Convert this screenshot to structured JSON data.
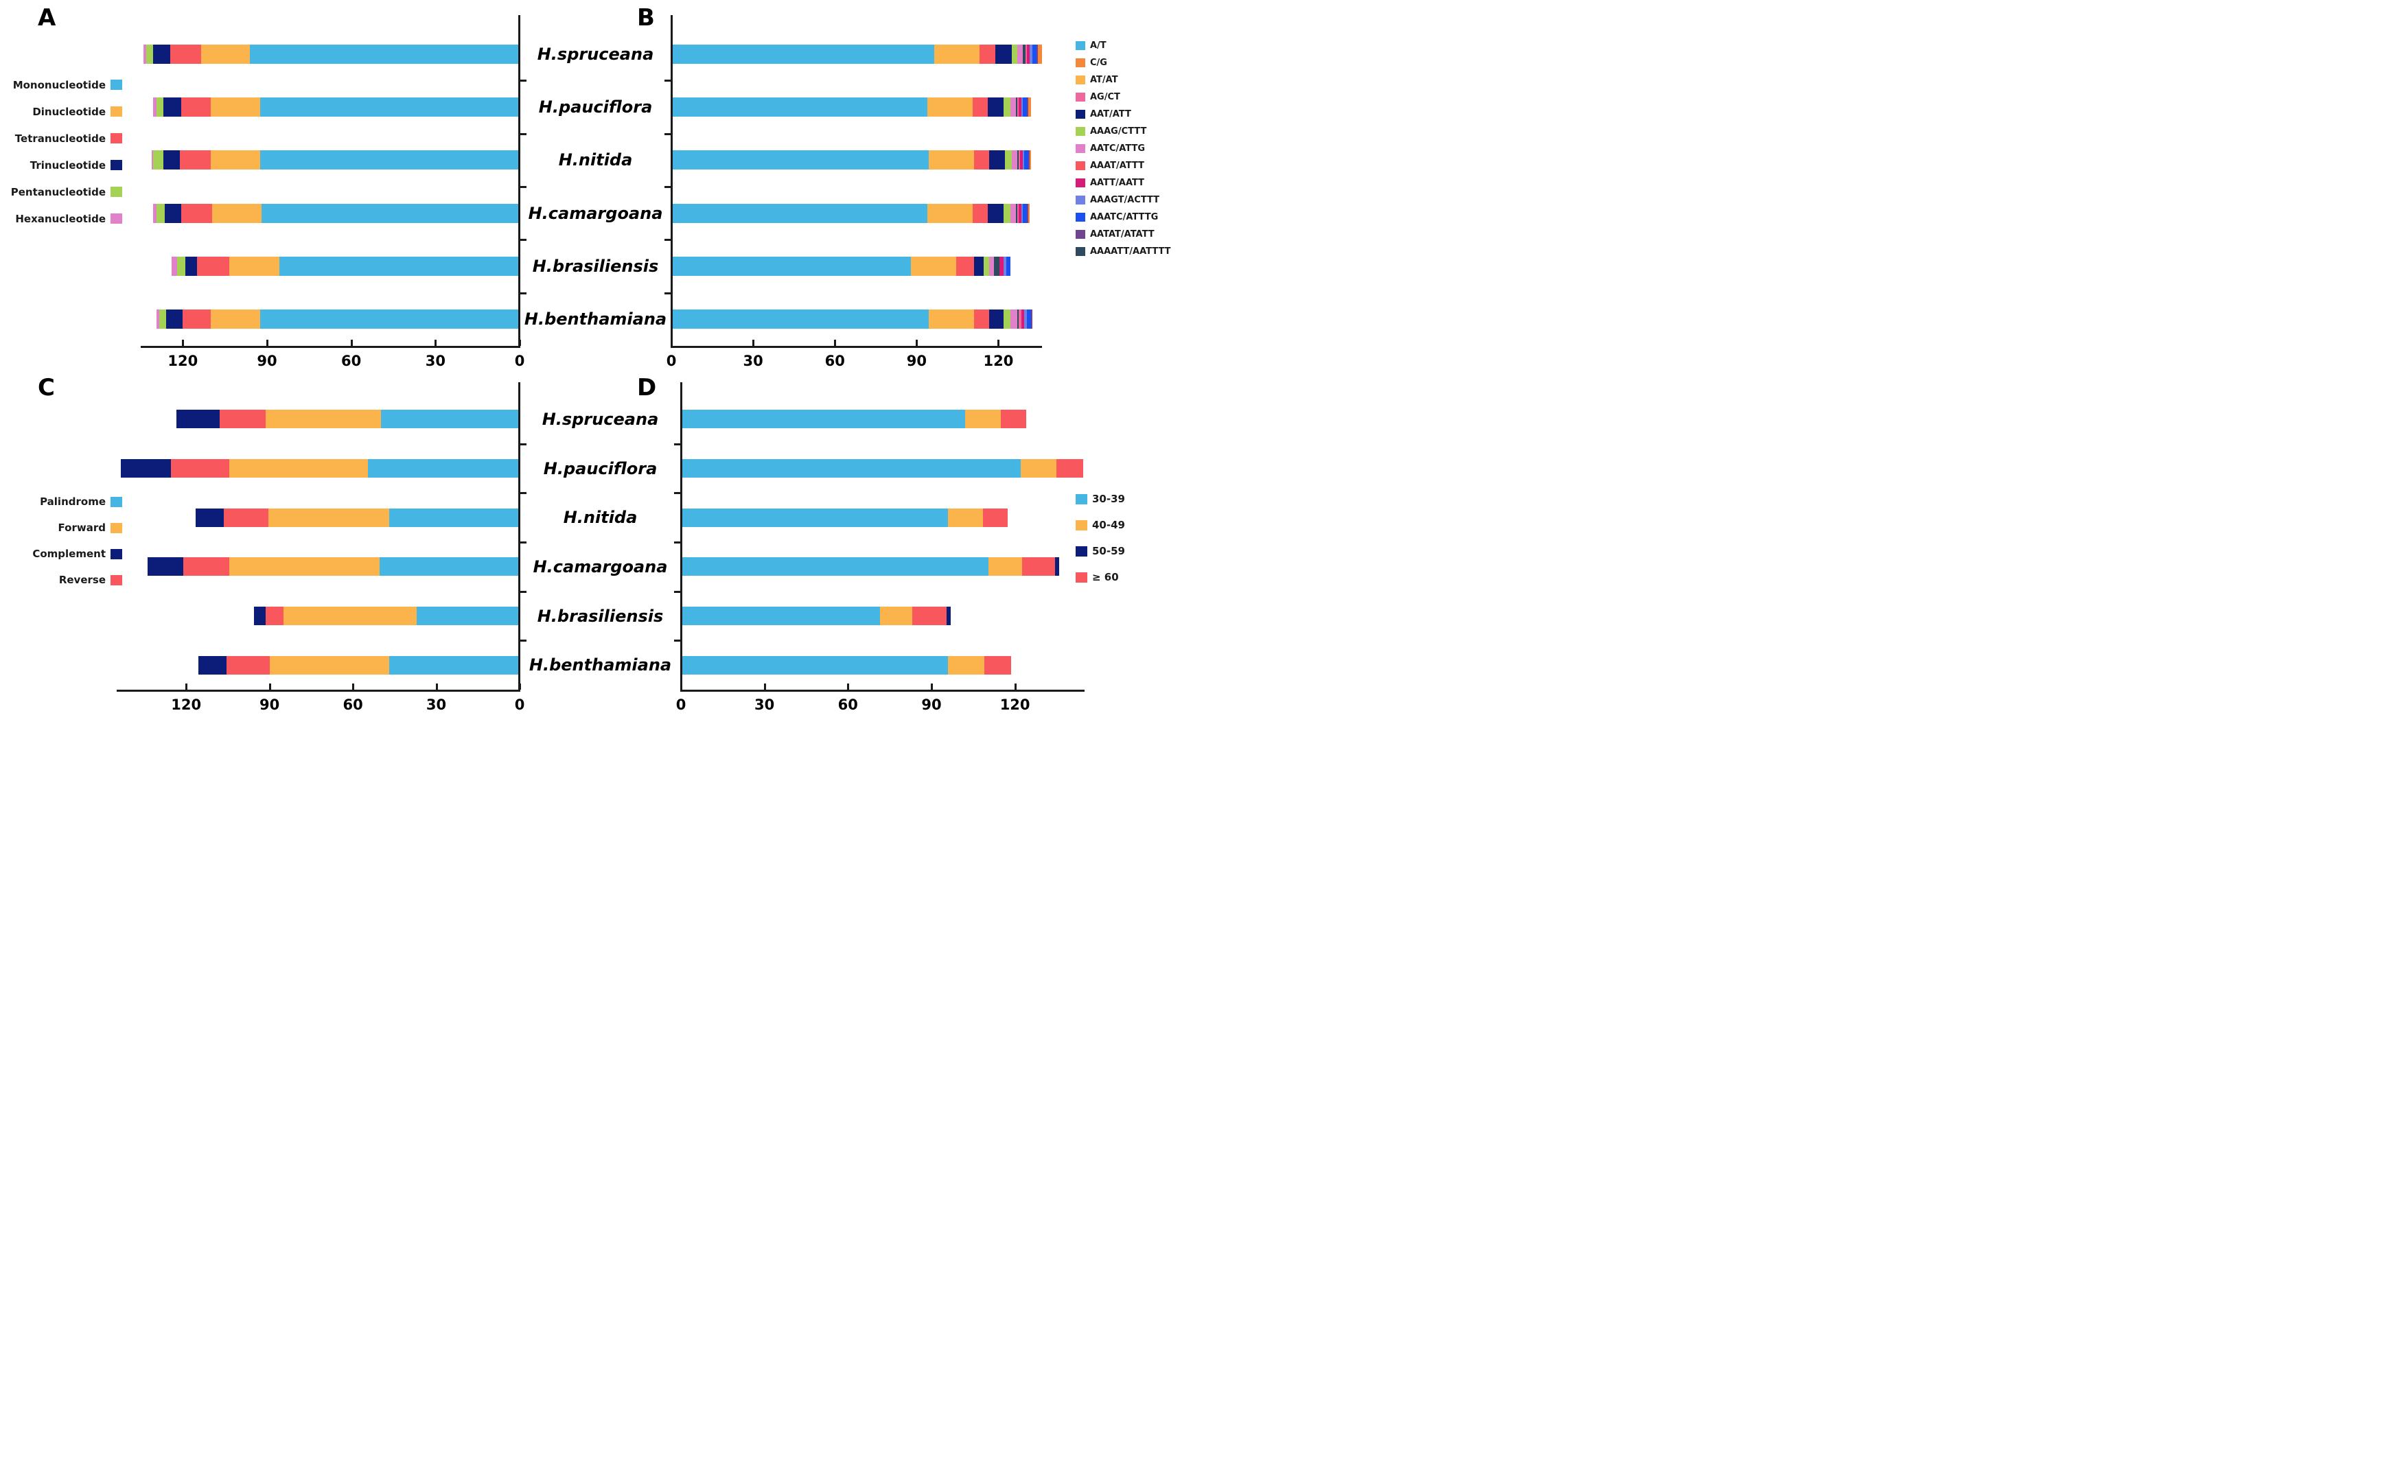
{
  "figure": {
    "species": [
      "H.spruceana",
      "H.pauciflora",
      "H.nitida",
      "H.camargoana",
      "H.brasiliensis",
      "H.benthamiana"
    ],
    "colors": {
      "blue": "#45B5E3",
      "amber": "#FBB34C",
      "coral": "#F9575E",
      "navy": "#0B1D78",
      "green": "#A5D254",
      "orchid": "#E081C9",
      "pink": "#F0679D",
      "orange": "#F5873B",
      "crimson": "#D51D77",
      "periwinkle": "#6F81E5",
      "royal": "#1A50EE",
      "purple": "#6F4591",
      "darkslate": "#2F4A5E"
    }
  },
  "chart_data": [
    {
      "id": "A",
      "letter": "A",
      "type": "bar",
      "stacked": true,
      "orientation": "horizontal",
      "direction": "rtl",
      "axis": {
        "max": 135,
        "ticks": [
          120,
          90,
          60,
          30,
          0
        ],
        "label": ""
      },
      "legend_position": "left",
      "legend": [
        {
          "label": "Mononucleotide",
          "color": "blue"
        },
        {
          "label": "Dinucleotide",
          "color": "amber"
        },
        {
          "label": "Tetranucleotide",
          "color": "coral"
        },
        {
          "label": "Trinucleotide",
          "color": "navy"
        },
        {
          "label": "Pentanucleotide",
          "color": "green"
        },
        {
          "label": "Hexanucleotide",
          "color": "orchid"
        }
      ],
      "series_keys": [
        {
          "name": "Mononucleotide",
          "color": "blue"
        },
        {
          "name": "Dinucleotide",
          "color": "amber"
        },
        {
          "name": "Tetranucleotide",
          "color": "coral"
        },
        {
          "name": "Trinucleotide",
          "color": "navy"
        },
        {
          "name": "Pentanucleotide",
          "color": "green"
        },
        {
          "name": "Hexanucleotide",
          "color": "orchid"
        }
      ],
      "rows": [
        {
          "species": "H.spruceana",
          "values": [
            96,
            17.5,
            11,
            6,
            2.5,
            1
          ]
        },
        {
          "species": "H.pauciflora",
          "values": [
            92.5,
            17.5,
            10.5,
            6.5,
            2.5,
            1
          ]
        },
        {
          "species": "H.nitida",
          "values": [
            92.5,
            17.5,
            11,
            6,
            3.5,
            0.5
          ]
        },
        {
          "species": "H.camargoana",
          "values": [
            92,
            17.5,
            11,
            6,
            3,
            1
          ]
        },
        {
          "species": "H.brasiliensis",
          "values": [
            85.5,
            18,
            11.5,
            4,
            3,
            2
          ]
        },
        {
          "species": "H.benthamiana",
          "values": [
            92.5,
            17.5,
            10,
            6,
            2.5,
            1
          ]
        }
      ]
    },
    {
      "id": "B",
      "letter": "B",
      "type": "bar",
      "stacked": true,
      "orientation": "horizontal",
      "direction": "ltr",
      "axis": {
        "max": 136,
        "ticks": [
          0,
          30,
          60,
          90,
          120
        ],
        "label": ""
      },
      "legend_position": "right",
      "legend": [
        {
          "label": "A/T",
          "color": "blue"
        },
        {
          "label": "C/G",
          "color": "orange"
        },
        {
          "label": "AT/AT",
          "color": "amber"
        },
        {
          "label": "AG/CT",
          "color": "pink"
        },
        {
          "label": "AAT/ATT",
          "color": "navy"
        },
        {
          "label": "AAAG/CTTT",
          "color": "green"
        },
        {
          "label": "AATC/ATTG",
          "color": "orchid"
        },
        {
          "label": "AAAT/ATTT",
          "color": "coral"
        },
        {
          "label": "AATT/AATT",
          "color": "crimson"
        },
        {
          "label": "AAAGT/ACTTT",
          "color": "periwinkle"
        },
        {
          "label": "AAATC/ATTTG",
          "color": "royal"
        },
        {
          "label": "AATAT/ATATT",
          "color": "purple"
        },
        {
          "label": "AAAATT/AATTTT",
          "color": "darkslate"
        }
      ],
      "series_keys": [
        {
          "name": "A/T",
          "color": "blue"
        },
        {
          "name": "AT/AT",
          "color": "amber"
        },
        {
          "name": "AAAT/ATTT",
          "color": "coral"
        },
        {
          "name": "AAT/ATT",
          "color": "navy"
        },
        {
          "name": "AAAG/CTTT",
          "color": "green"
        },
        {
          "name": "AATC/ATTG",
          "color": "orchid"
        },
        {
          "name": "AAAATT/AATTTT",
          "color": "darkslate"
        },
        {
          "name": "AG/CT",
          "color": "pink"
        },
        {
          "name": "AATT/AATT",
          "color": "crimson"
        },
        {
          "name": "AAAGT/ACTTT",
          "color": "periwinkle"
        },
        {
          "name": "AAATC/ATTTG",
          "color": "royal"
        },
        {
          "name": "AATAT/ATATT",
          "color": "purple"
        },
        {
          "name": "C/G",
          "color": "orange"
        }
      ],
      "rows": [
        {
          "species": "H.spruceana",
          "values": [
            96.5,
            16.5,
            6,
            6,
            2,
            2,
            1,
            0.5,
            1,
            1,
            1.5,
            0.5,
            1.5
          ]
        },
        {
          "species": "H.pauciflora",
          "values": [
            94,
            16.5,
            5.5,
            6,
            2.5,
            2,
            0.5,
            0.5,
            1,
            0.5,
            1.5,
            0.5,
            1
          ]
        },
        {
          "species": "H.nitida",
          "values": [
            94.5,
            16.5,
            5.5,
            6,
            2.5,
            2,
            0.5,
            0.5,
            1,
            0.5,
            1.5,
            0.5,
            0.5
          ]
        },
        {
          "species": "H.camargoana",
          "values": [
            94,
            16.5,
            5.5,
            6,
            2.5,
            2,
            0.5,
            0.5,
            1,
            0.5,
            1.5,
            0.5,
            0.5
          ]
        },
        {
          "species": "H.brasiliensis",
          "values": [
            88,
            16.5,
            6.5,
            3.5,
            2,
            2,
            2,
            0,
            1.5,
            1,
            1.5,
            0,
            0
          ]
        },
        {
          "species": "H.benthamiana",
          "values": [
            94.5,
            16.5,
            5.5,
            5.5,
            2.5,
            2.5,
            0.5,
            1,
            1,
            1,
            1.5,
            0.5,
            0
          ]
        }
      ]
    },
    {
      "id": "C",
      "letter": "C",
      "type": "bar",
      "stacked": true,
      "orientation": "horizontal",
      "direction": "rtl",
      "axis": {
        "max": 145,
        "ticks": [
          120,
          90,
          60,
          30,
          0
        ],
        "label": ""
      },
      "legend_position": "left",
      "legend": [
        {
          "label": "Palindrome",
          "color": "blue"
        },
        {
          "label": "Forward",
          "color": "amber"
        },
        {
          "label": "Complement",
          "color": "navy"
        },
        {
          "label": "Reverse",
          "color": "coral"
        }
      ],
      "series_keys": [
        {
          "name": "Palindrome",
          "color": "blue"
        },
        {
          "name": "Forward",
          "color": "amber"
        },
        {
          "name": "Reverse",
          "color": "coral"
        },
        {
          "name": "Complement",
          "color": "navy"
        }
      ],
      "rows": [
        {
          "species": "H.spruceana",
          "values": [
            50,
            41.5,
            16.5,
            15.5
          ]
        },
        {
          "species": "H.pauciflora",
          "values": [
            54.5,
            50,
            21,
            18
          ]
        },
        {
          "species": "H.nitida",
          "values": [
            47,
            43.5,
            16,
            10
          ]
        },
        {
          "species": "H.camargoana",
          "values": [
            50.5,
            54,
            16.5,
            13
          ]
        },
        {
          "species": "H.brasiliensis",
          "values": [
            37,
            48,
            6.5,
            4
          ]
        },
        {
          "species": "H.benthamiana",
          "values": [
            47,
            43,
            15.5,
            10
          ]
        }
      ]
    },
    {
      "id": "D",
      "letter": "D",
      "type": "bar",
      "stacked": true,
      "orientation": "horizontal",
      "direction": "ltr",
      "axis": {
        "max": 145,
        "ticks": [
          0,
          30,
          60,
          90,
          120
        ],
        "label": ""
      },
      "legend_position": "right",
      "legend": [
        {
          "label": "30-39",
          "color": "blue"
        },
        {
          "label": "40-49",
          "color": "amber"
        },
        {
          "label": "50-59",
          "color": "navy"
        },
        {
          "label": "≥ 60",
          "color": "coral"
        }
      ],
      "series_keys": [
        {
          "name": "30-39",
          "color": "blue"
        },
        {
          "name": "40-49",
          "color": "amber"
        },
        {
          "name": "≥ 60",
          "color": "coral"
        },
        {
          "name": "50-59",
          "color": "navy"
        }
      ],
      "rows": [
        {
          "species": "H.spruceana",
          "values": [
            102,
            13,
            9,
            0
          ]
        },
        {
          "species": "H.pauciflora",
          "values": [
            122,
            13,
            9.5,
            0
          ]
        },
        {
          "species": "H.nitida",
          "values": [
            96,
            12.5,
            9,
            0
          ]
        },
        {
          "species": "H.camargoana",
          "values": [
            110.5,
            12,
            12,
            1.5
          ]
        },
        {
          "species": "H.brasiliensis",
          "values": [
            71.5,
            11.5,
            12.5,
            1.5
          ]
        },
        {
          "species": "H.benthamiana",
          "values": [
            96,
            13,
            9.5,
            0
          ]
        }
      ]
    }
  ]
}
